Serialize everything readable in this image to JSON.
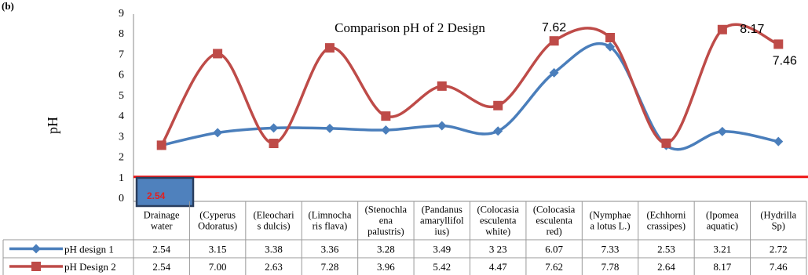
{
  "corner_label": "(b)",
  "callout_value": "2.54",
  "chart_data": {
    "type": "line",
    "title": "Comparison pH of 2 Design",
    "ylabel": "pH",
    "xlabel": "",
    "ylim": [
      0,
      9
    ],
    "yticks": [
      "0",
      "1",
      "2",
      "3",
      "4",
      "5",
      "6",
      "7",
      "8",
      "9"
    ],
    "grid": false,
    "legend": "table-left",
    "categories": [
      [
        "Drainage",
        "water"
      ],
      [
        "(Cyperus",
        "Odoratus)"
      ],
      [
        "(Eleochari",
        "s dulcis)"
      ],
      [
        "(Limnocha",
        "ris flava)"
      ],
      [
        "(Stenochla",
        "ena",
        "palustris)"
      ],
      [
        "(Pandanus",
        "amaryllifol",
        "ius)"
      ],
      [
        "(Colocasia",
        "esculenta",
        "white)"
      ],
      [
        "(Colocasia",
        "esculenta",
        "red)"
      ],
      [
        "(Nymphae",
        "a lotus L.)"
      ],
      [
        "(Echhorni",
        "crassipes)"
      ],
      [
        "(Ipomea",
        "aquatic)"
      ],
      [
        "(Hydrilla",
        "Sp)"
      ]
    ],
    "series": [
      {
        "name": "pH design 1",
        "color": "#4a7ebb",
        "marker": "diamond",
        "values": [
          2.54,
          3.15,
          3.38,
          3.36,
          3.28,
          3.49,
          3.23,
          6.07,
          7.33,
          2.53,
          3.21,
          2.72
        ],
        "table_values": [
          "2.54",
          "3.15",
          "3.38",
          "3.36",
          "3.28",
          "3.49",
          "3 23",
          "6.07",
          "7.33",
          "2.53",
          "3.21",
          "2.72"
        ]
      },
      {
        "name": "pH Design 2",
        "color": "#be4b48",
        "marker": "square",
        "values": [
          2.54,
          7.0,
          2.63,
          7.28,
          3.96,
          5.42,
          4.47,
          7.62,
          7.78,
          2.64,
          8.17,
          7.46
        ],
        "table_values": [
          "2.54",
          "7.00",
          "2.63",
          "7.28",
          "3.96",
          "5.42",
          "4.47",
          "7.62",
          "7.78",
          "2.64",
          "8.17",
          "7.46"
        ]
      }
    ],
    "data_labels": [
      {
        "series": 1,
        "index": 7,
        "text": "7.62"
      },
      {
        "series": 1,
        "index": 10,
        "text": "8.17"
      },
      {
        "series": 1,
        "index": 11,
        "text": "7.46"
      }
    ],
    "reference_line": {
      "y": 1,
      "color": "#ee1111"
    }
  }
}
